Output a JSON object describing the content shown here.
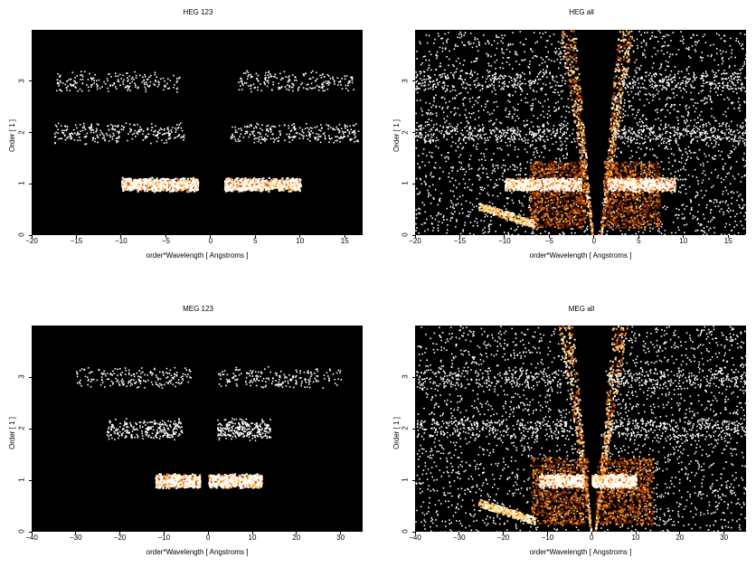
{
  "chart_data": [
    {
      "type": "heatmap",
      "id": "heg123",
      "title": "HEG 123",
      "xlabel": "order*Wavelength [ Angstroms ]",
      "ylabel": "Order [ 1 ]",
      "xlim": [
        -20,
        17
      ],
      "ylim": [
        0,
        4
      ],
      "xticks": [
        -20,
        -15,
        -10,
        -5,
        0,
        5,
        10,
        15
      ],
      "yticks": [
        0,
        1,
        2,
        3
      ],
      "bands": [
        {
          "order": 1,
          "ranges": [
            [
              -10,
              -1.5
            ],
            [
              1.5,
              10
            ]
          ],
          "density": "bright"
        },
        {
          "order": 2,
          "ranges": [
            [
              -17.5,
              -3
            ],
            [
              2,
              16.5
            ]
          ],
          "density": "medium"
        },
        {
          "order": 3,
          "ranges": [
            [
              -17.5,
              -3.5
            ],
            [
              3,
              16
            ]
          ],
          "density": "sparse"
        }
      ],
      "wedge": false
    },
    {
      "type": "heatmap",
      "id": "hegall",
      "title": "HEG all",
      "xlabel": "order*Wavelength [ Angstroms ]",
      "ylabel": "Order [ 1 ]",
      "xlim": [
        -20,
        17
      ],
      "ylim": [
        0,
        4
      ],
      "xticks": [
        -20,
        -15,
        -10,
        -5,
        0,
        5,
        10,
        15
      ],
      "yticks": [
        0,
        1,
        2,
        3
      ],
      "bands": [
        {
          "order": 1,
          "ranges": [
            [
              -10,
              -1.5
            ],
            [
              1.5,
              9
            ]
          ],
          "density": "bright"
        },
        {
          "order": 2,
          "ranges": [
            [
              -20,
              -3
            ],
            [
              2,
              17
            ]
          ],
          "density": "medium"
        },
        {
          "order": 3,
          "ranges": [
            [
              -20,
              -3
            ],
            [
              3,
              17
            ]
          ],
          "density": "sparse"
        }
      ],
      "wedge": true
    },
    {
      "type": "heatmap",
      "id": "meg123",
      "title": "MEG 123",
      "xlabel": "order*Wavelength [ Angstroms ]",
      "ylabel": "Order [ 1 ]",
      "xlim": [
        -40,
        35
      ],
      "ylim": [
        0,
        4
      ],
      "xticks": [
        -40,
        -30,
        -20,
        -10,
        0,
        10,
        20,
        30
      ],
      "yticks": [
        0,
        1,
        2,
        3
      ],
      "bands": [
        {
          "order": 1,
          "ranges": [
            [
              -12,
              -2
            ],
            [
              0,
              12
            ]
          ],
          "density": "bright"
        },
        {
          "order": 2,
          "ranges": [
            [
              -23,
              -6
            ],
            [
              2,
              14
            ]
          ],
          "density": "medium"
        },
        {
          "order": 3,
          "ranges": [
            [
              -30,
              -4
            ],
            [
              2,
              30
            ]
          ],
          "density": "sparse"
        }
      ],
      "wedge": false
    },
    {
      "type": "heatmap",
      "id": "megall",
      "title": "MEG all",
      "xlabel": "order*Wavelength [ Angstroms ]",
      "ylabel": "Order [ 1 ]",
      "xlim": [
        -40,
        35
      ],
      "ylim": [
        0,
        4
      ],
      "xticks": [
        -40,
        -30,
        -20,
        -10,
        0,
        10,
        20,
        30
      ],
      "yticks": [
        0,
        1,
        2,
        3
      ],
      "bands": [
        {
          "order": 1,
          "ranges": [
            [
              -12,
              -2
            ],
            [
              0,
              10
            ]
          ],
          "density": "bright"
        },
        {
          "order": 2,
          "ranges": [
            [
              -40,
              -4
            ],
            [
              2,
              35
            ]
          ],
          "density": "medium"
        },
        {
          "order": 3,
          "ranges": [
            [
              -40,
              -4
            ],
            [
              3,
              35
            ]
          ],
          "density": "sparse"
        }
      ],
      "wedge": true
    }
  ]
}
